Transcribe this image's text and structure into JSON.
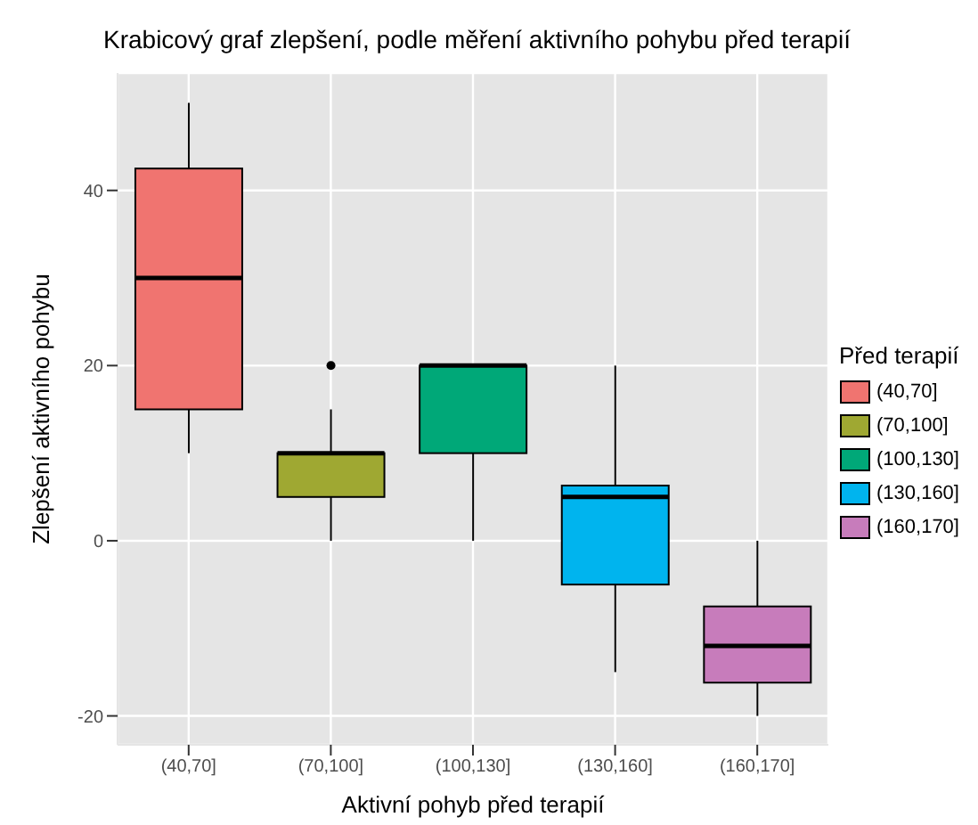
{
  "chart_data": {
    "type": "box",
    "title": "Krabicový graf zlepšení, podle měření aktivního pohybu před terapií",
    "xlabel": "Aktivní pohyb před terapií",
    "ylabel": "Zlepšení aktivního pohybu",
    "legend_title": "Před terapií",
    "categories": [
      "(40,70]",
      "(70,100]",
      "(100,130]",
      "(130,160]",
      "(160,170]"
    ],
    "series": [
      {
        "name": "(40,70]",
        "color": "#f07470",
        "boxes": [
          {
            "low": 10,
            "q1": 15,
            "median": 30,
            "q3": 42.5,
            "high": 50
          },
          null,
          null,
          null,
          null
        ]
      },
      {
        "name": "(70,100]",
        "color": "#9fa832",
        "boxes": [
          null,
          {
            "low": 0,
            "q1": 5,
            "median": 10,
            "q3": 10,
            "high": 15,
            "outliers": [
              20
            ]
          },
          null,
          null,
          null
        ]
      },
      {
        "name": "(100,130]",
        "color": "#00a878",
        "boxes": [
          null,
          null,
          {
            "low": 0,
            "q1": 10,
            "median": 20,
            "q3": 20,
            "high": 20
          },
          null,
          null
        ]
      },
      {
        "name": "(130,160]",
        "color": "#00b4ee",
        "boxes": [
          null,
          null,
          null,
          {
            "low": -15,
            "q1": -5,
            "median": 5,
            "q3": 6.3,
            "high": 20
          },
          null
        ]
      },
      {
        "name": "(160,170]",
        "color": "#c77cbb",
        "boxes": [
          null,
          null,
          null,
          null,
          {
            "low": -20,
            "q1": -16.2,
            "median": -12,
            "q3": -7.5,
            "high": 0
          }
        ]
      }
    ],
    "ylim": [
      -23.3,
      53.4
    ],
    "yticks": [
      -20,
      0,
      20,
      40
    ],
    "grid": true,
    "legend": "right"
  }
}
